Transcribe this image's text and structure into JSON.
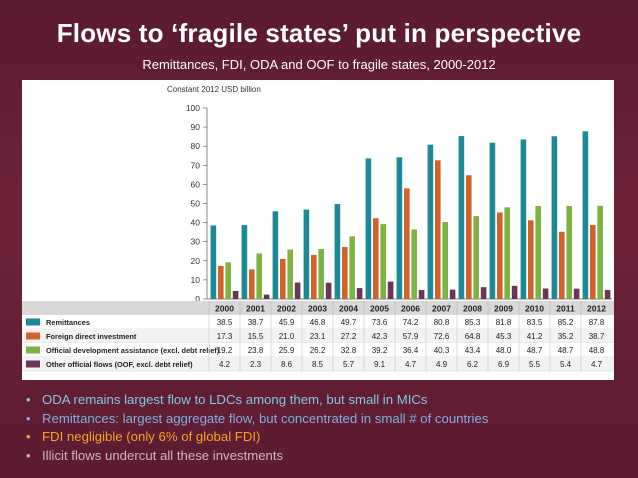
{
  "title": "Flows to ‘fragile states’ put in perspective",
  "subtitle": "Remittances, FDI, ODA and OOF to fragile states, 2000-2012",
  "chart_data": {
    "type": "bar",
    "unit_label": "Constant 2012 USD billion",
    "categories": [
      "2000",
      "2001",
      "2002",
      "2003",
      "2004",
      "2005",
      "2006",
      "2007",
      "2008",
      "2009",
      "2010",
      "2011",
      "2012"
    ],
    "ylim": [
      0,
      100
    ],
    "yticks": [
      0,
      10,
      20,
      30,
      40,
      50,
      60,
      70,
      80,
      90,
      100
    ],
    "grid": false,
    "legend_placement": "table-below",
    "series": [
      {
        "name": "Remittances",
        "color": "#1b8a96",
        "values": [
          38.5,
          38.7,
          45.9,
          46.8,
          49.7,
          73.6,
          74.2,
          80.8,
          85.3,
          81.8,
          83.5,
          85.2,
          87.8
        ],
        "labels": [
          "38.5",
          "38.7",
          "45.9",
          "46.8",
          "49.7",
          "73.6",
          "74.2",
          "80.8",
          "85.3",
          "81.8",
          "83.5",
          "85.2",
          "87.8"
        ]
      },
      {
        "name": "Foreign direct investment",
        "color": "#d2622a",
        "values": [
          17.3,
          15.5,
          21.0,
          23.1,
          27.2,
          42.3,
          57.9,
          72.6,
          64.8,
          45.3,
          41.2,
          35.2,
          38.7
        ],
        "labels": [
          "17.3",
          "15.5",
          "21.0",
          "23.1",
          "27.2",
          "42.3",
          "57.9",
          "72.6",
          "64.8",
          "45.3",
          "41.2",
          "35.2",
          "38.7"
        ]
      },
      {
        "name": "Official development assistance (excl. debt relief)",
        "color": "#7cb342",
        "values": [
          19.2,
          23.8,
          25.9,
          26.2,
          32.8,
          39.2,
          36.4,
          40.3,
          43.4,
          48.0,
          48.7,
          48.7,
          48.8
        ],
        "labels": [
          "19.2",
          "23.8",
          "25.9",
          "26.2",
          "32.8",
          "39.2",
          "36.4",
          "40.3",
          "43.4",
          "48.0",
          "48.7",
          "48.7",
          "48.8"
        ]
      },
      {
        "name": "Other official flows (OOF, excl. debt relief)",
        "color": "#6a3657",
        "values": [
          4.2,
          2.3,
          8.6,
          8.5,
          5.7,
          9.1,
          4.7,
          4.9,
          6.2,
          6.9,
          5.5,
          5.4,
          4.7
        ],
        "labels": [
          "4.2",
          "2.3",
          "8.6",
          "8.5",
          "5.7",
          "9.1",
          "4.7",
          "4.9",
          "6.2",
          "6.9",
          "5.5",
          "5.4",
          "4.7"
        ]
      }
    ]
  },
  "bullets": [
    {
      "dot": "•",
      "text": "ODA remains largest flow to LDCs among them, but small in MICs"
    },
    {
      "dot": "•",
      "text": "Remittances: largest aggregate flow, but concentrated in small # of countries"
    },
    {
      "dot": "•",
      "text": "FDI negligible (only 6% of global FDI)"
    },
    {
      "dot": "•",
      "text": "Illicit flows undercut all these investments"
    }
  ]
}
